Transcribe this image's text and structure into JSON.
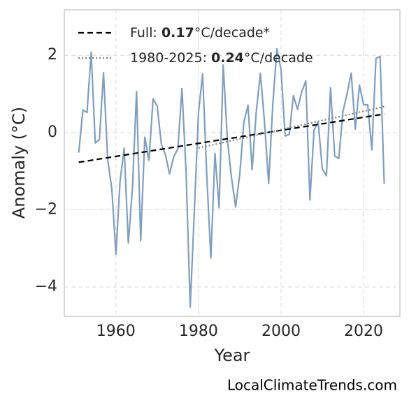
{
  "chart_data": {
    "type": "line",
    "xlabel": "Year",
    "ylabel": "Anomaly (°C)",
    "source": "LocalClimateTrends.com",
    "x": [
      1951,
      1952,
      1953,
      1954,
      1955,
      1956,
      1957,
      1958,
      1959,
      1960,
      1961,
      1962,
      1963,
      1964,
      1965,
      1966,
      1967,
      1968,
      1969,
      1970,
      1971,
      1972,
      1973,
      1974,
      1975,
      1976,
      1977,
      1978,
      1979,
      1980,
      1981,
      1982,
      1983,
      1984,
      1985,
      1986,
      1987,
      1988,
      1989,
      1990,
      1991,
      1992,
      1993,
      1994,
      1995,
      1996,
      1997,
      1998,
      1999,
      2000,
      2001,
      2002,
      2003,
      2004,
      2005,
      2006,
      2007,
      2008,
      2009,
      2010,
      2011,
      2012,
      2013,
      2014,
      2015,
      2016,
      2017,
      2018,
      2019,
      2020,
      2021,
      2022,
      2023,
      2024,
      2025
    ],
    "series": [
      {
        "color": "#7f9fc0",
        "values": [
          -0.52,
          0.58,
          0.52,
          2.08,
          -0.27,
          -0.18,
          1.55,
          -0.7,
          -1.45,
          -3.15,
          -1.27,
          -0.4,
          -2.86,
          -1.45,
          1.06,
          -2.8,
          -0.12,
          -0.72,
          0.87,
          0.69,
          -0.3,
          -0.58,
          -1.07,
          -0.63,
          -0.42,
          1.14,
          -1.03,
          -4.52,
          -2.03,
          0.51,
          1.52,
          -1.08,
          -3.25,
          -0.54,
          -1.95,
          1.75,
          -0.18,
          -1.17,
          -1.93,
          -1.08,
          0.27,
          0.71,
          -0.96,
          0.54,
          1.54,
          0.27,
          -1.32,
          0.72,
          2.17,
          1.63,
          -0.09,
          -0.05,
          0.96,
          0.6,
          1.05,
          1.34,
          -1.75,
          0.07,
          0.27,
          -0.94,
          -1.12,
          1.16,
          -0.61,
          -0.67,
          0.54,
          1.01,
          1.54,
          0.09,
          1.23,
          0.72,
          0.72,
          -0.45,
          1.92,
          1.97,
          -1.33
        ]
      }
    ],
    "trends": [
      {
        "label_parts": [
          "Full: ",
          "0.17",
          "°C/decade*"
        ],
        "color": "#000000",
        "style": "dashed",
        "x": [
          1951,
          2025
        ],
        "values": [
          -0.77,
          0.48
        ]
      },
      {
        "label_parts": [
          "1980-2025: ",
          "0.24",
          "°C/decade"
        ],
        "color": "#808080",
        "style": "dotted",
        "x": [
          1980,
          2025
        ],
        "values": [
          -0.4,
          0.67
        ]
      }
    ],
    "xlim": [
      1947.5,
      2028.8
    ],
    "ylim": [
      -4.76,
      3.18
    ],
    "xticks": [
      1960,
      1980,
      2000,
      2020
    ],
    "yticks": [
      {
        "value": -4,
        "label": "−4"
      },
      {
        "value": -2,
        "label": "−2"
      },
      0,
      2
    ],
    "grid": true,
    "legend": "upper left"
  }
}
